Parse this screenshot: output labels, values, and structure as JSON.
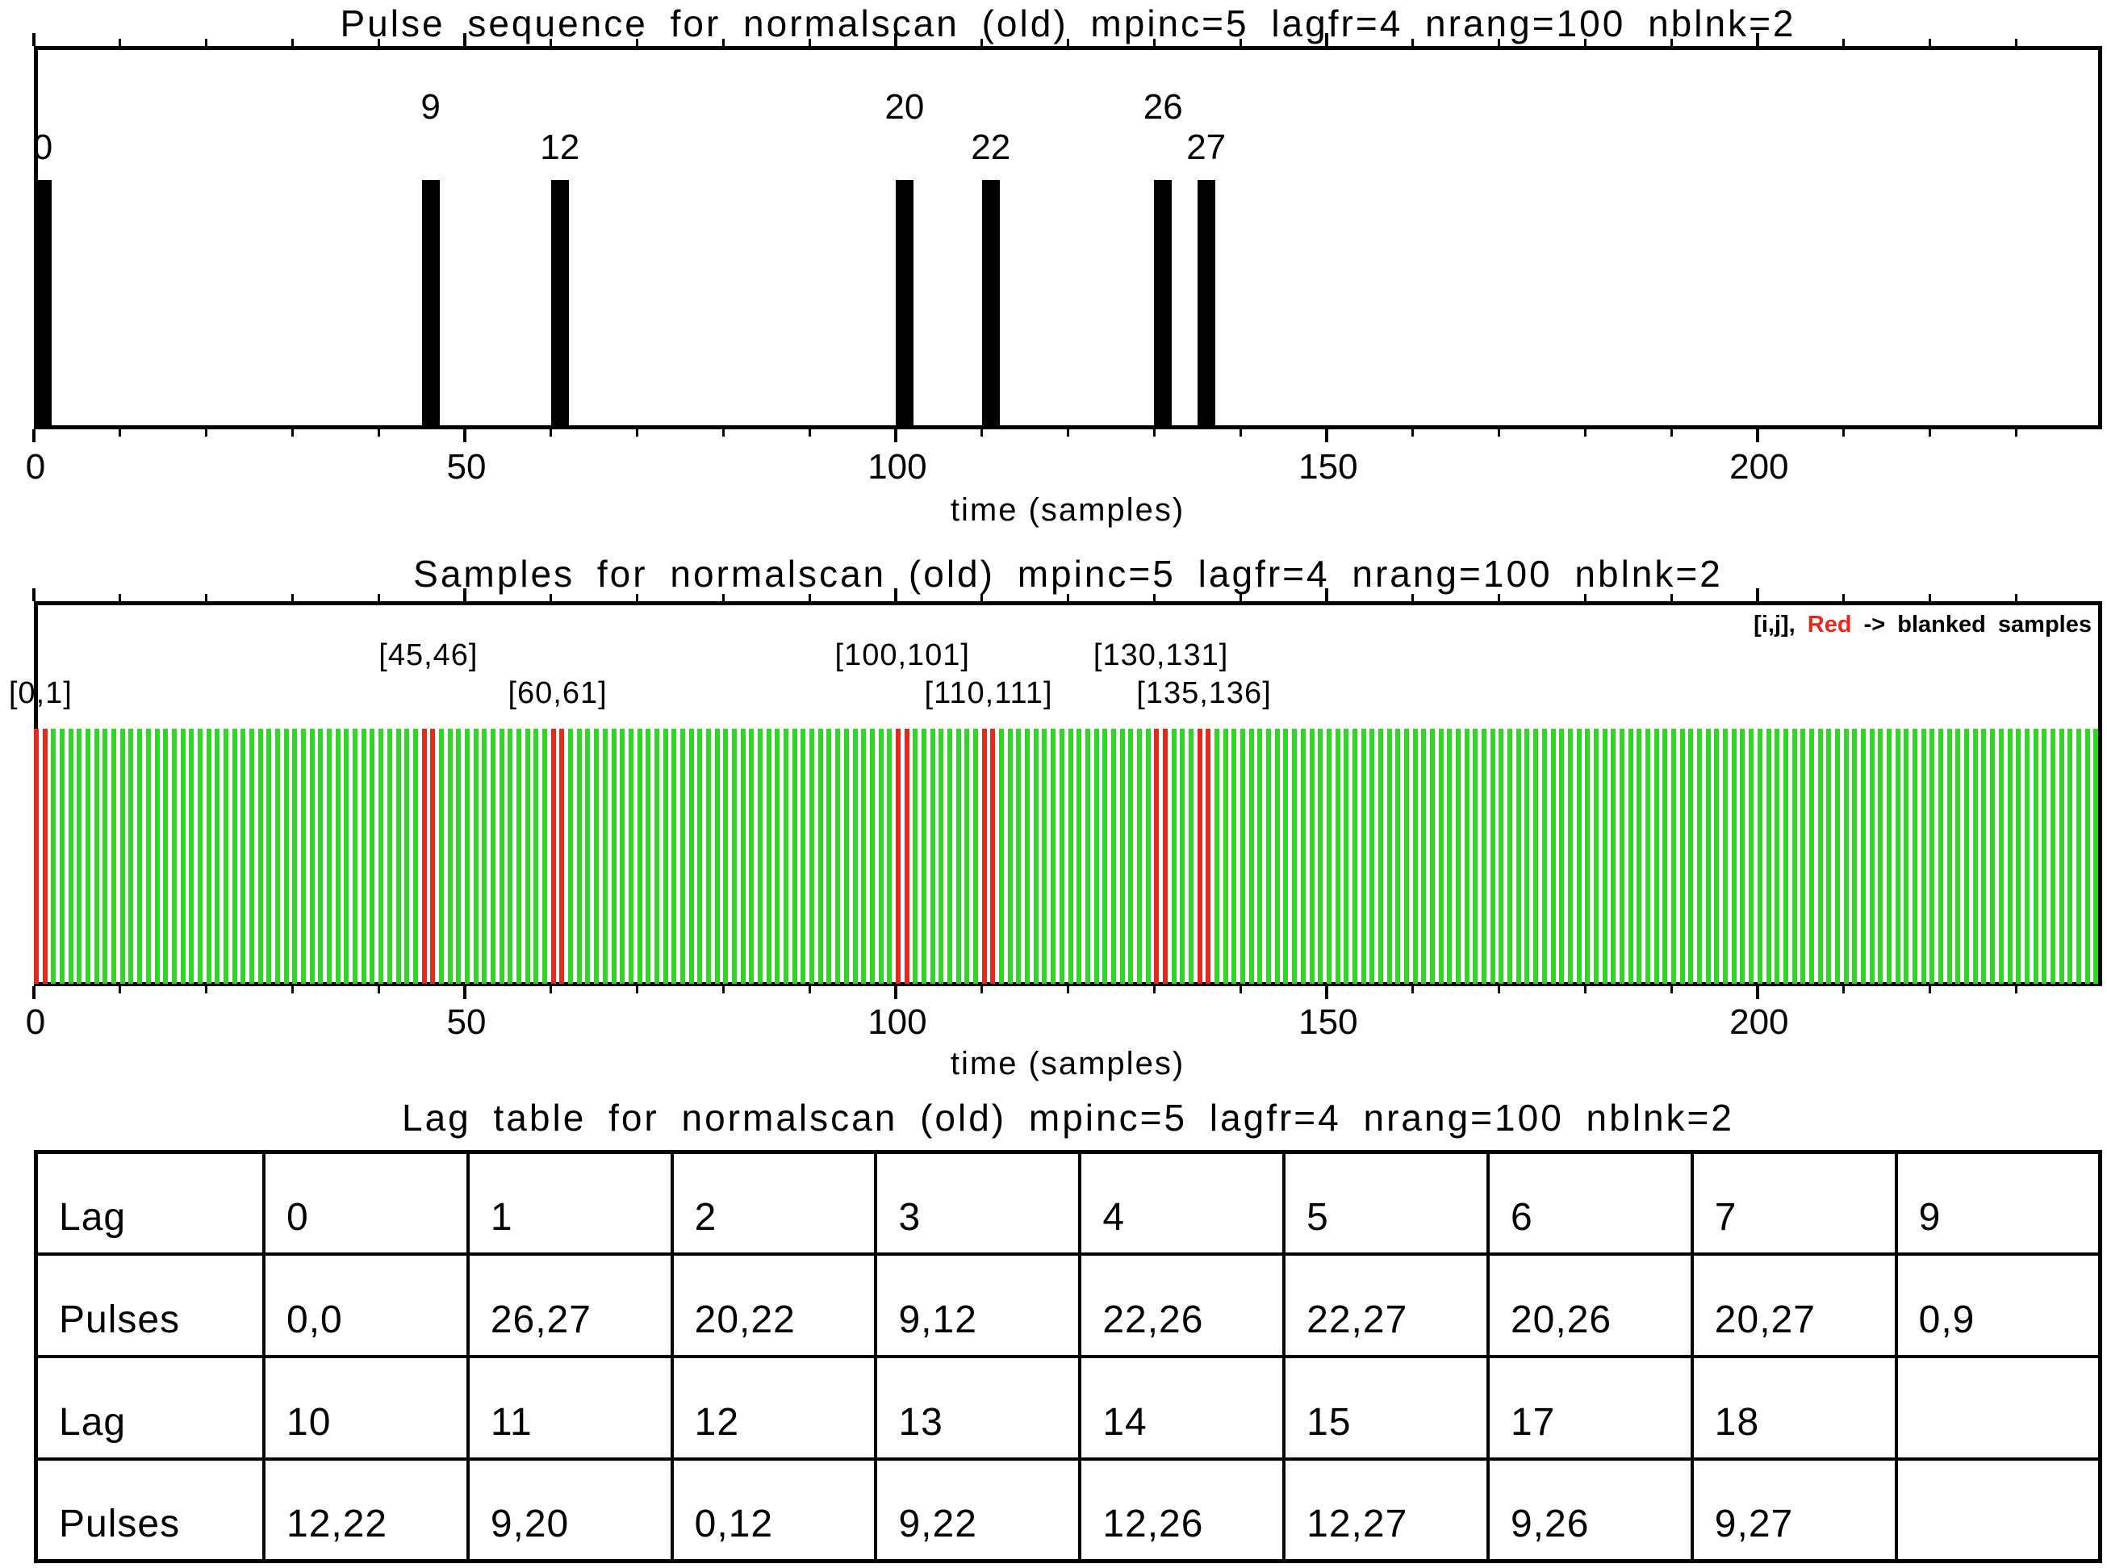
{
  "chart_data": [
    {
      "id": "pulse-sequence",
      "type": "bar",
      "title": "Pulse sequence for normalscan (old) mpinc=5 lagfr=4 nrang=100 nblnk=2",
      "xlabel": "time (samples)",
      "x": [
        0,
        45,
        60,
        100,
        110,
        130,
        135
      ],
      "bar_labels": [
        "0",
        "9",
        "12",
        "20",
        "22",
        "26",
        "27"
      ],
      "label_row": [
        "low",
        "high",
        "low",
        "high",
        "low",
        "high",
        "low"
      ],
      "values": [
        1,
        1,
        1,
        1,
        1,
        1,
        1
      ],
      "bar_width_x": 2,
      "bar_color": "#000000",
      "xlim": [
        0,
        240
      ],
      "x_ticks": {
        "major_values": [
          0,
          50,
          100,
          150,
          200
        ],
        "major_labels": [
          "0",
          "50",
          "100",
          "150",
          "200"
        ],
        "minor_step": 10
      },
      "grid": false,
      "notes": "black pulse bars at pulse-table times (pulse number x mpinc=5)"
    },
    {
      "id": "samples",
      "type": "bar",
      "title": "Samples for normalscan (old) mpinc=5 lagfr=4 nrang=100 nblnk=2",
      "xlabel": "time (samples)",
      "num_samples": 240,
      "sample_color": "#30d528",
      "blanked_color": "#e5291c",
      "blanked_samples": [
        0,
        1,
        45,
        46,
        60,
        61,
        100,
        101,
        110,
        111,
        130,
        131,
        135,
        136
      ],
      "pair_labels": [
        "[0,1]",
        "[45,46]",
        "[60,61]",
        "[100,101]",
        "[110,111]",
        "[130,131]",
        "[135,136]"
      ],
      "pair_label_anchors": [
        0.5,
        45.5,
        60.5,
        100.5,
        110.5,
        130.5,
        135.5
      ],
      "pair_label_row": [
        "low",
        "high",
        "low",
        "high",
        "low",
        "high",
        "low"
      ],
      "legend_parts": {
        "prefix": "[i,j], ",
        "red_word": "Red",
        "suffix": " -> blanked samples"
      },
      "xlim": [
        0,
        240
      ],
      "x_ticks": {
        "major_values": [
          0,
          50,
          100,
          150,
          200
        ],
        "major_labels": [
          "0",
          "50",
          "100",
          "150",
          "200"
        ],
        "minor_step": 10
      },
      "grid": false,
      "notes": "one vertical line per sample 0-239; red lines = blanked samples"
    },
    {
      "id": "lag-table",
      "type": "table",
      "title": "Lag table for normalscan (old) mpinc=5 lagfr=4 nrang=100 nblnk=2",
      "rows": [
        [
          "Lag",
          "0",
          "1",
          "2",
          "3",
          "4",
          "5",
          "6",
          "7",
          "9"
        ],
        [
          "Pulses",
          "0,0",
          "26,27",
          "20,22",
          "9,12",
          "22,26",
          "22,27",
          "20,26",
          "20,27",
          "0,9"
        ],
        [
          "Lag",
          "10",
          "11",
          "12",
          "13",
          "14",
          "15",
          "17",
          "18",
          ""
        ],
        [
          "Pulses",
          "12,22",
          "9,20",
          "0,12",
          "9,22",
          "12,26",
          "12,27",
          "9,26",
          "9,27",
          ""
        ]
      ]
    }
  ]
}
